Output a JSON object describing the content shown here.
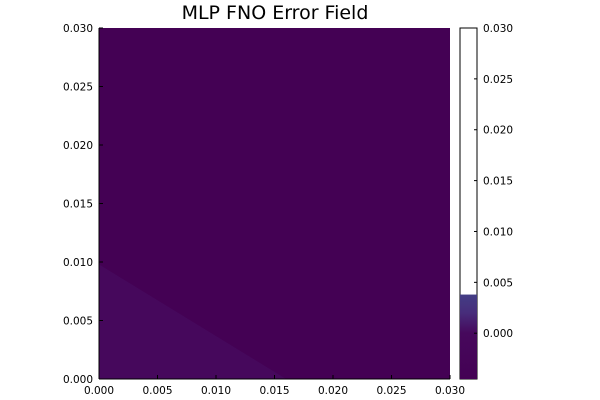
{
  "chart_data": {
    "type": "heatmap",
    "title": "MLP FNO Error Field",
    "xlabel": "",
    "ylabel": "",
    "xlim": [
      0.0,
      0.03
    ],
    "ylim": [
      0.0,
      0.03
    ],
    "x_ticks": [
      "0.000",
      "0.005",
      "0.010",
      "0.015",
      "0.020",
      "0.025",
      "0.030"
    ],
    "y_ticks": [
      "0.000",
      "0.005",
      "0.010",
      "0.015",
      "0.020",
      "0.025",
      "0.030"
    ],
    "grid": false,
    "background_value": 0.0,
    "background_color": "#440154",
    "regions": [
      {
        "name": "lower-left wedge",
        "value": 0.0003,
        "color": "#46085c",
        "polygon": [
          [
            0.0,
            0.0
          ],
          [
            0.016,
            0.0
          ],
          [
            0.0,
            0.0098
          ]
        ]
      }
    ],
    "colorbar": {
      "clim": [
        -0.0045,
        0.03
      ],
      "data_max": 0.0038,
      "ticks": [
        "0.000",
        "0.005",
        "0.010",
        "0.015",
        "0.020",
        "0.025",
        "0.030"
      ],
      "gradient": [
        {
          "value": -0.0045,
          "color": "#440154"
        },
        {
          "value": 0.0,
          "color": "#46085c"
        },
        {
          "value": 0.002,
          "color": "#472d7b"
        },
        {
          "value": 0.0038,
          "color": "#433e85"
        }
      ],
      "above_range_color": "#ffffff"
    }
  }
}
